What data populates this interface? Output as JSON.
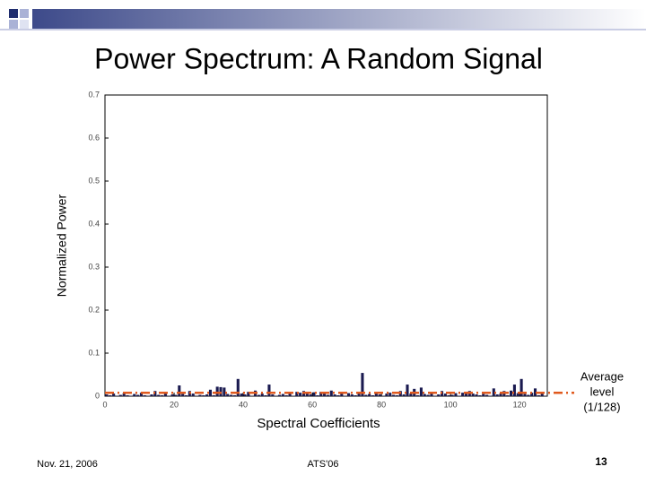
{
  "slide": {
    "footer_date": "Nov. 21, 2006",
    "footer_event": "ATS'06",
    "page_number": "13"
  },
  "chart_data": {
    "type": "bar",
    "title": "Power Spectrum: A Random Signal",
    "x_label": "Spectral Coefficients",
    "y_label": "Normalized Power",
    "color": "#1a1a50",
    "values": [
      0.004,
      0.002,
      0.006,
      0.001,
      0.003,
      0.007,
      0.002,
      0.001,
      0.005,
      0.003,
      0.008,
      0.002,
      0.001,
      0.004,
      0.012,
      0.003,
      0.002,
      0.006,
      0.001,
      0.004,
      0.003,
      0.025,
      0.005,
      0.002,
      0.012,
      0.006,
      0.001,
      0.003,
      0.002,
      0.004,
      0.015,
      0.002,
      0.022,
      0.021,
      0.02,
      0.005,
      0.003,
      0.002,
      0.04,
      0.006,
      0.004,
      0.01,
      0.001,
      0.013,
      0.003,
      0.006,
      0.002,
      0.027,
      0.004,
      0.001,
      0.003,
      0.005,
      0.002,
      0.006,
      0.001,
      0.01,
      0.008,
      0.012,
      0.007,
      0.004,
      0.009,
      0.002,
      0.01,
      0.006,
      0.003,
      0.013,
      0.004,
      0.002,
      0.006,
      0.001,
      0.007,
      0.004,
      0.002,
      0.008,
      0.054,
      0.003,
      0.005,
      0.002,
      0.009,
      0.004,
      0.001,
      0.006,
      0.008,
      0.003,
      0.002,
      0.012,
      0.004,
      0.027,
      0.006,
      0.017,
      0.002,
      0.02,
      0.005,
      0.003,
      0.009,
      0.001,
      0.004,
      0.012,
      0.006,
      0.002,
      0.003,
      0.007,
      0.001,
      0.008,
      0.01,
      0.012,
      0.006,
      0.004,
      0.002,
      0.005,
      0.003,
      0.001,
      0.018,
      0.004,
      0.006,
      0.012,
      0.002,
      0.013,
      0.027,
      0.007,
      0.04,
      0.005,
      0.003,
      0.008,
      0.018,
      0.002,
      0.006,
      0.001
    ],
    "xlim": [
      0,
      128
    ],
    "xticks": [
      0,
      20,
      40,
      60,
      80,
      100,
      120
    ],
    "ylim": [
      0,
      0.7
    ],
    "yticks": [
      0,
      0.1,
      0.2,
      0.3,
      0.4,
      0.5,
      0.6,
      0.7
    ],
    "average": {
      "value": 0.0078125,
      "color": "#e05a1e",
      "label_lines": [
        "Average",
        "level",
        "(1/128)"
      ]
    }
  }
}
